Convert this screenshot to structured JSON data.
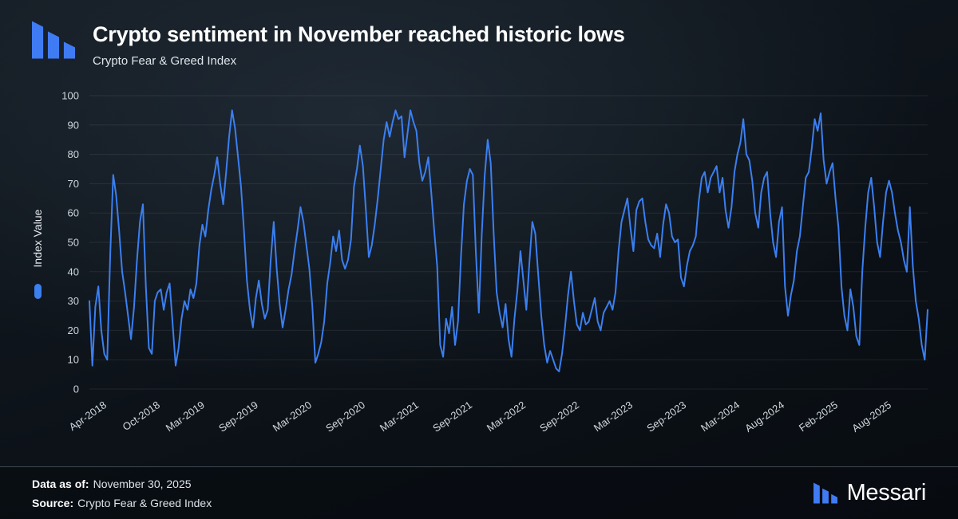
{
  "header": {
    "title": "Crypto sentiment in November reached historic lows",
    "subtitle": "Crypto Fear & Greed Index"
  },
  "footer": {
    "data_as_of_label": "Data as of:",
    "data_as_of_value": "November 30, 2025",
    "source_label": "Source:",
    "source_value": "Crypto Fear & Greed Index",
    "brand": "Messari"
  },
  "colors": {
    "line": "#3b7ff0",
    "logo": "#3f7bf2",
    "grid": "rgba(255,255,255,0.08)",
    "background": "#0d141b",
    "text": "#ffffff"
  },
  "chart_data": {
    "type": "line",
    "title": "Crypto sentiment in November reached historic lows",
    "subtitle": "Crypto Fear & Greed Index",
    "xlabel": "",
    "ylabel": "Index Value",
    "ylim": [
      0,
      100
    ],
    "yticks": [
      0,
      10,
      20,
      30,
      40,
      50,
      60,
      70,
      80,
      90,
      100
    ],
    "grid": "horizontal",
    "legend_position": "left",
    "x_start": "Feb-2018",
    "x_end": "Nov-2025",
    "total_months": 94,
    "x_ticks": [
      {
        "label": "Apr-2018",
        "month": 2
      },
      {
        "label": "Oct-2018",
        "month": 8
      },
      {
        "label": "Mar-2019",
        "month": 13
      },
      {
        "label": "Sep-2019",
        "month": 19
      },
      {
        "label": "Mar-2020",
        "month": 25
      },
      {
        "label": "Sep-2020",
        "month": 31
      },
      {
        "label": "Mar-2021",
        "month": 37
      },
      {
        "label": "Sep-2021",
        "month": 43
      },
      {
        "label": "Mar-2022",
        "month": 49
      },
      {
        "label": "Sep-2022",
        "month": 55
      },
      {
        "label": "Mar-2023",
        "month": 61
      },
      {
        "label": "Sep-2023",
        "month": 67
      },
      {
        "label": "Mar-2024",
        "month": 73
      },
      {
        "label": "Aug-2024",
        "month": 78
      },
      {
        "label": "Feb-2025",
        "month": 84
      },
      {
        "label": "Aug-2025",
        "month": 90
      }
    ],
    "series": [
      {
        "name": "Index Value",
        "cadence": "approx-3-points-per-month",
        "values": [
          30,
          8,
          28,
          35,
          20,
          12,
          10,
          46,
          73,
          66,
          54,
          40,
          33,
          25,
          17,
          28,
          44,
          57,
          63,
          35,
          14,
          12,
          30,
          33,
          34,
          27,
          33,
          36,
          22,
          8,
          14,
          24,
          30,
          27,
          34,
          31,
          36,
          49,
          56,
          52,
          61,
          68,
          73,
          79,
          70,
          63,
          74,
          86,
          95,
          89,
          79,
          69,
          54,
          37,
          27,
          21,
          31,
          37,
          29,
          24,
          27,
          44,
          57,
          41,
          29,
          21,
          27,
          34,
          39,
          47,
          54,
          62,
          57,
          49,
          41,
          28,
          9,
          12,
          16,
          23,
          36,
          43,
          52,
          47,
          54,
          44,
          41,
          44,
          51,
          69,
          75,
          83,
          76,
          61,
          45,
          49,
          56,
          65,
          75,
          85,
          91,
          86,
          91,
          95,
          92,
          93,
          79,
          87,
          95,
          91,
          88,
          77,
          71,
          74,
          79,
          67,
          54,
          42,
          15,
          11,
          24,
          19,
          28,
          15,
          23,
          45,
          63,
          71,
          75,
          73,
          47,
          26,
          53,
          73,
          85,
          77,
          53,
          33,
          26,
          21,
          29,
          17,
          11,
          24,
          34,
          47,
          37,
          27,
          43,
          57,
          53,
          39,
          25,
          15,
          9,
          13,
          10,
          7,
          6,
          12,
          21,
          32,
          40,
          30,
          22,
          20,
          26,
          22,
          23,
          27,
          31,
          23,
          20,
          26,
          28,
          30,
          27,
          33,
          47,
          57,
          61,
          65,
          55,
          47,
          61,
          64,
          65,
          57,
          51,
          49,
          48,
          53,
          45,
          56,
          63,
          60,
          52,
          50,
          51,
          38,
          35,
          42,
          47,
          49,
          52,
          64,
          72,
          74,
          67,
          72,
          74,
          76,
          67,
          72,
          61,
          55,
          62,
          74,
          80,
          84,
          92,
          80,
          78,
          71,
          60,
          55,
          67,
          72,
          74,
          60,
          50,
          45,
          57,
          62,
          35,
          25,
          32,
          37,
          47,
          52,
          62,
          72,
          74,
          82,
          92,
          88,
          94,
          78,
          70,
          74,
          77,
          65,
          55,
          35,
          25,
          20,
          34,
          28,
          18,
          15,
          40,
          55,
          67,
          72,
          62,
          50,
          45,
          57,
          67,
          71,
          67,
          60,
          54,
          50,
          44,
          40,
          62,
          42,
          30,
          24,
          15,
          10,
          27
        ]
      }
    ]
  }
}
